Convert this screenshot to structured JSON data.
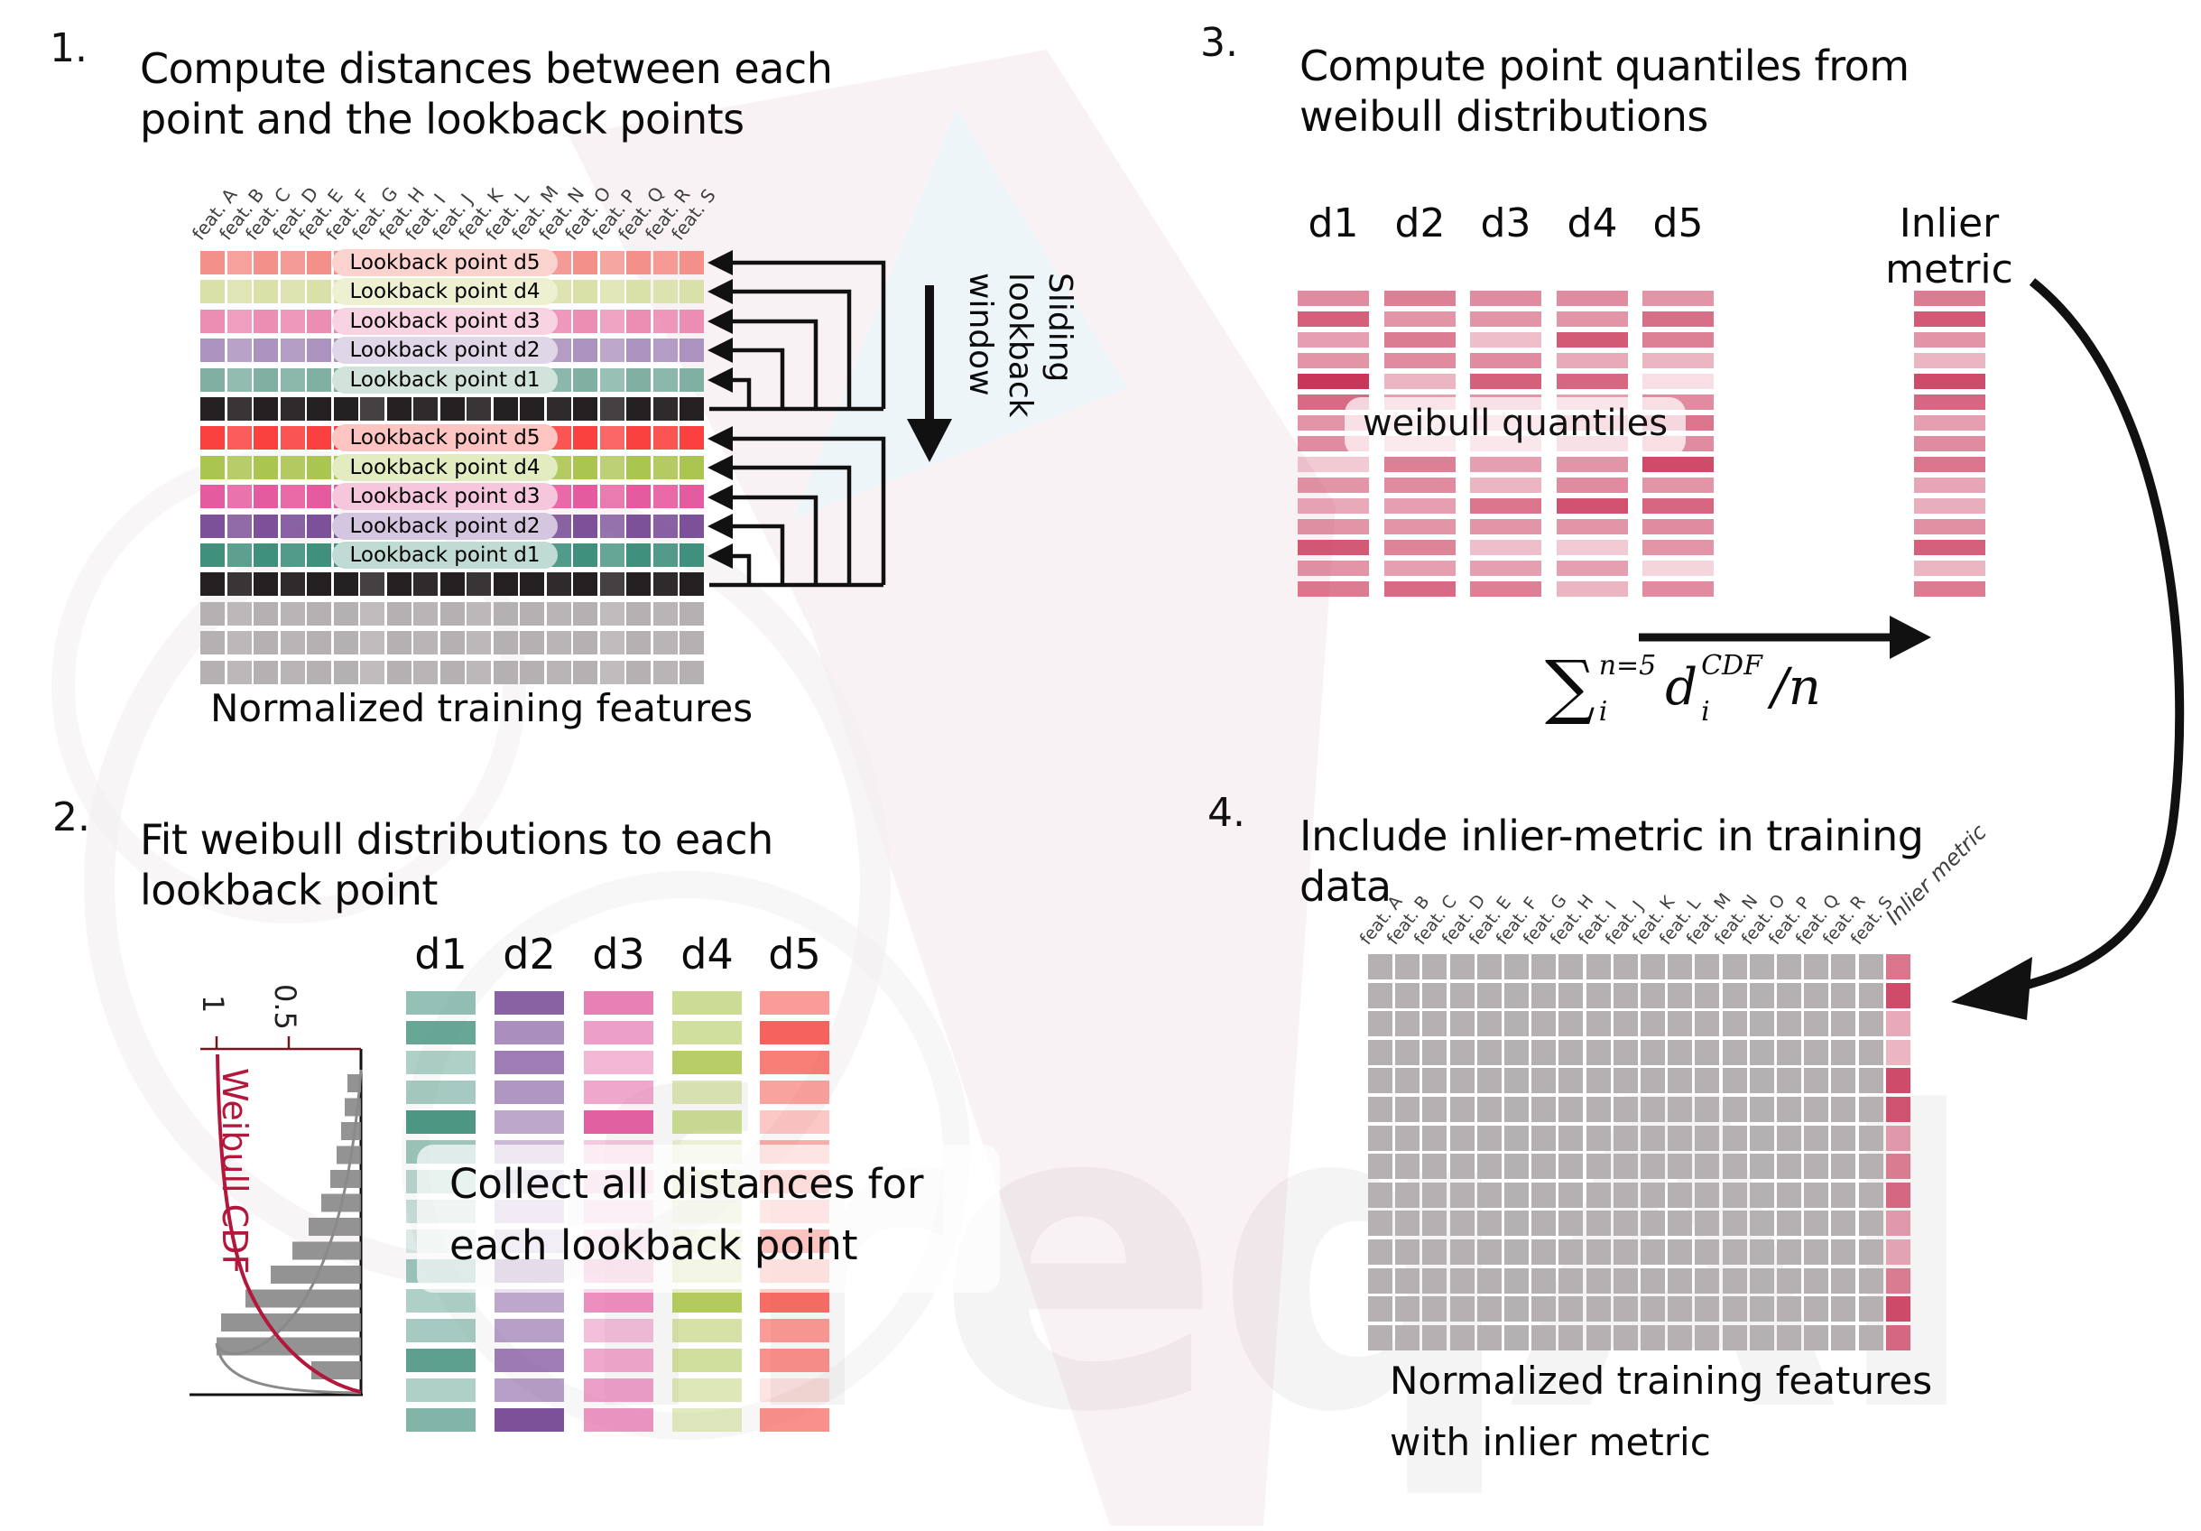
{
  "watermark": {
    "text": "freqAI"
  },
  "panel1": {
    "number": "1.",
    "title_line1": "Compute distances between each",
    "title_line2": "point and the lookback points",
    "caption": "Normalized training features",
    "features": [
      "feat. A",
      "feat. B",
      "feat. C",
      "feat. D",
      "feat. E",
      "feat. F",
      "feat. G",
      "feat. H",
      "feat. I",
      "feat. J",
      "feat. K",
      "feat. L",
      "feat. M",
      "feat. N",
      "feat. O",
      "feat. P",
      "feat. Q",
      "feat. R",
      "feat. S"
    ],
    "cell_alpha": [
      1,
      0.85,
      1,
      0.9,
      1,
      1,
      0.8,
      1,
      0.9,
      1,
      0.85,
      1,
      1,
      0.9,
      1,
      0.8,
      1,
      0.9,
      1
    ],
    "rows": [
      {
        "label": "Lookback point d5",
        "color": "#F4908A",
        "pill": "#FBD3CE"
      },
      {
        "label": "Lookback point d4",
        "color": "#D9E1A8",
        "pill": "#EDF1D2"
      },
      {
        "label": "Lookback point d3",
        "color": "#EC8DB4",
        "pill": "#F8D4E3"
      },
      {
        "label": "Lookback point d2",
        "color": "#AC92BE",
        "pill": "#DFD6E7"
      },
      {
        "label": "Lookback point d1",
        "color": "#7FB0A2",
        "pill": "#D2E3DC"
      },
      {
        "label": "",
        "color": "#241F20",
        "pill": ""
      },
      {
        "label": "Lookback point d5",
        "color": "#FA4140",
        "pill": "#FDC4C2"
      },
      {
        "label": "Lookback point d4",
        "color": "#ABC551",
        "pill": "#E3ECC0"
      },
      {
        "label": "Lookback point d3",
        "color": "#E55B9F",
        "pill": "#F6C6DC"
      },
      {
        "label": "Lookback point d2",
        "color": "#7C5199",
        "pill": "#D5C6E0"
      },
      {
        "label": "Lookback point d1",
        "color": "#3F907D",
        "pill": "#BFDBD3"
      },
      {
        "label": "",
        "color": "#241F20",
        "pill": ""
      },
      {
        "label": "",
        "color": "#B5B0B1",
        "pill": ""
      },
      {
        "label": "",
        "color": "#B5B0B1",
        "pill": ""
      },
      {
        "label": "",
        "color": "#B5B0B1",
        "pill": ""
      }
    ],
    "sliding_label": "Sliding\nlookback\nwindow"
  },
  "panel2": {
    "number": "2.",
    "title_line1": "Fit weibull distributions to each",
    "title_line2": "lookback point",
    "overlay_line1": "Collect all distances for",
    "overlay_line2": "each lookback point",
    "plot": {
      "cdf_label": "Weibull CDF",
      "tick_1": "1",
      "tick_05": "0.5",
      "cdf_color": "#B3173B",
      "bar_color": "#8A8A8A",
      "bar_lengths": [
        15,
        18,
        22,
        27,
        34,
        44,
        58,
        76,
        100,
        128,
        155,
        160,
        55
      ]
    },
    "columns": [
      {
        "label": "d1",
        "color": "#4D9683",
        "alphas": [
          0.6,
          0.85,
          0.45,
          0.5,
          1,
          0.55,
          0.4,
          0.3,
          0.2,
          0.55,
          0.45,
          0.5,
          0.9,
          0.45,
          0.7
        ]
      },
      {
        "label": "d2",
        "color": "#7C5199",
        "alphas": [
          0.9,
          0.65,
          0.75,
          0.6,
          0.5,
          0.4,
          0.3,
          0.35,
          0.3,
          0.6,
          0.5,
          0.55,
          0.75,
          0.55,
          1
        ]
      },
      {
        "label": "d3",
        "color": "#E160A2",
        "alphas": [
          0.8,
          0.6,
          0.45,
          0.55,
          1,
          0.35,
          0.3,
          0.25,
          0.3,
          0.5,
          0.7,
          0.4,
          0.55,
          0.6,
          0.65
        ]
      },
      {
        "label": "d4",
        "color": "#ABC44E",
        "alphas": [
          0.6,
          0.55,
          0.85,
          0.4,
          0.6,
          0.25,
          0.3,
          0.25,
          0.35,
          0.45,
          0.9,
          0.5,
          0.55,
          0.4,
          0.35
        ]
      },
      {
        "label": "d5",
        "color": "#F4483F",
        "alphas": [
          0.55,
          0.85,
          0.7,
          0.5,
          0.3,
          0.45,
          0.55,
          0.4,
          1,
          0.5,
          0.8,
          0.55,
          0.6,
          0.15,
          0.6
        ]
      }
    ]
  },
  "panel3": {
    "number": "3.",
    "title_line1": "Compute point quantiles from",
    "title_line2": "weibull distributions",
    "overlay": "weibull quantiles",
    "base_color": "#C62B50",
    "columns": [
      {
        "label": "d1",
        "alphas": [
          0.55,
          0.75,
          0.45,
          0.5,
          0.95,
          0.7,
          0.5,
          0.55,
          0.25,
          0.5,
          0.4,
          0.5,
          0.78,
          0.5,
          0.62
        ]
      },
      {
        "label": "d2",
        "alphas": [
          0.6,
          0.5,
          0.62,
          0.55,
          0.35,
          0.45,
          0.3,
          0.35,
          0.6,
          0.55,
          0.45,
          0.5,
          0.58,
          0.45,
          0.7
        ]
      },
      {
        "label": "d3",
        "alphas": [
          0.55,
          0.5,
          0.3,
          0.55,
          0.75,
          0.5,
          0.35,
          0.4,
          0.45,
          0.35,
          0.65,
          0.5,
          0.3,
          0.45,
          0.6
        ]
      },
      {
        "label": "d4",
        "alphas": [
          0.55,
          0.5,
          0.78,
          0.4,
          0.72,
          0.45,
          0.55,
          0.5,
          0.5,
          0.55,
          0.82,
          0.5,
          0.25,
          0.45,
          0.35
        ]
      },
      {
        "label": "d5",
        "alphas": [
          0.5,
          0.68,
          0.6,
          0.35,
          0.15,
          0.55,
          0.65,
          0.55,
          0.85,
          0.5,
          0.72,
          0.55,
          0.5,
          0.2,
          0.55
        ]
      }
    ],
    "inlier": {
      "label": "Inlier metric",
      "alphas": [
        0.62,
        0.78,
        0.5,
        0.35,
        0.85,
        0.72,
        0.45,
        0.55,
        0.65,
        0.42,
        0.38,
        0.52,
        0.75,
        0.35,
        0.62
      ]
    },
    "formula": {
      "sigma": "∑",
      "sigma_sup": "n=5",
      "sigma_sub": "i",
      "term": "d",
      "term_sup": "CDF",
      "term_sub": "i",
      "divisor": "/n"
    }
  },
  "panel4": {
    "number": "4.",
    "title_line1": "Include inlier-metric in training",
    "title_line2": "data",
    "caption_line1": "Normalized training features",
    "caption_line2": "with inlier metric",
    "features": [
      "feat. A",
      "feat. B",
      "feat. C",
      "feat. D",
      "feat. E",
      "feat. F",
      "feat. G",
      "feat. H",
      "feat. I",
      "feat. J",
      "feat. K",
      "feat. L",
      "feat. M",
      "feat. N",
      "feat. O",
      "feat. P",
      "feat. Q",
      "feat. R",
      "feat. S"
    ],
    "inlier_label": "Inlier metric",
    "grid": {
      "rows": 14,
      "gray": "#B5B0B1",
      "inlier_color": "#C62B50",
      "inlier_alphas": [
        0.65,
        0.85,
        0.4,
        0.35,
        0.85,
        0.8,
        0.45,
        0.6,
        0.7,
        0.45,
        0.4,
        0.6,
        0.85,
        0.7
      ]
    }
  }
}
